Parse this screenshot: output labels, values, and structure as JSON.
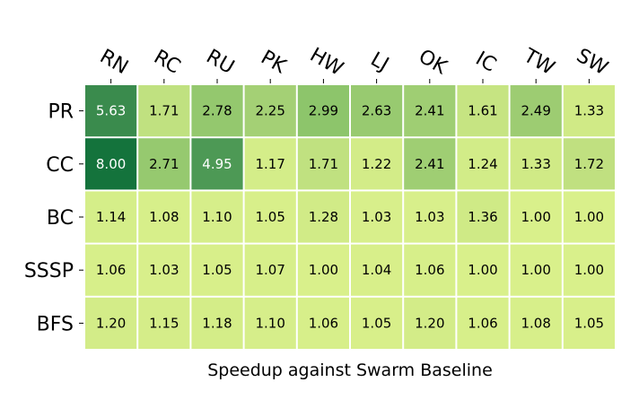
{
  "chart_data": {
    "type": "heatmap",
    "title": "",
    "xlabel": "Speedup against Swarm Baseline",
    "ylabel": "",
    "columns": [
      "RN",
      "RC",
      "RU",
      "PK",
      "HW",
      "LJ",
      "OK",
      "IC",
      "TW",
      "SW"
    ],
    "rows": [
      "PR",
      "CC",
      "BC",
      "SSSP",
      "BFS"
    ],
    "values": [
      [
        5.63,
        1.71,
        2.78,
        2.25,
        2.99,
        2.63,
        2.41,
        1.61,
        2.49,
        1.33
      ],
      [
        8.0,
        2.71,
        4.95,
        1.17,
        1.71,
        1.22,
        2.41,
        1.24,
        1.33,
        1.72
      ],
      [
        1.14,
        1.08,
        1.1,
        1.05,
        1.28,
        1.03,
        1.03,
        1.36,
        1.0,
        1.0
      ],
      [
        1.06,
        1.03,
        1.05,
        1.07,
        1.0,
        1.04,
        1.06,
        1.0,
        1.0,
        1.0
      ],
      [
        1.2,
        1.15,
        1.18,
        1.1,
        1.06,
        1.05,
        1.2,
        1.06,
        1.08,
        1.05
      ]
    ],
    "colormap": "YlGn",
    "value_format": "2 decimals",
    "colorbar": false,
    "grid": false
  }
}
